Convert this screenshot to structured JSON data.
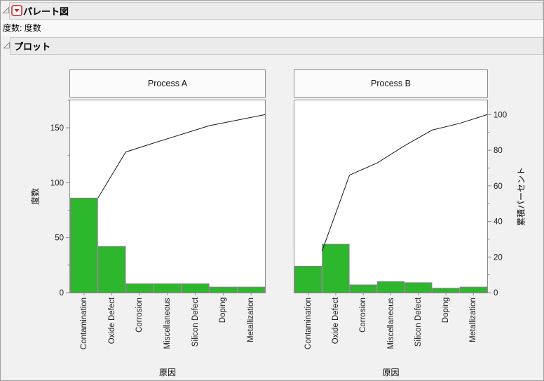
{
  "header": {
    "outline_title": "パレート図",
    "frequency_row": "度数: 度数",
    "plot_section_title": "プロット"
  },
  "icons": {
    "disclosure_open": "disclosure-triangle-open",
    "red_triangle_menu": "red-triangle-menu"
  },
  "colors": {
    "bar_fill": "#2cb72c",
    "bar_stroke": "#858585",
    "line": "#1a1a1a",
    "tick": "#8c8c8c",
    "red_triangle": "#cf1d1d",
    "band_bg": "#ebebeb",
    "frame_border": "#8c8c8c",
    "window_bg": "#f1f1f1"
  },
  "axes": {
    "freq_max": 175,
    "pct100_freq": 162,
    "left_ticks": [
      0,
      50,
      100,
      150
    ],
    "left_minor_step": 25,
    "right_ticks": [
      0,
      20,
      40,
      60,
      80,
      100
    ],
    "right_minor_step": 10,
    "left_label": "度数",
    "right_label": "累積パーセント",
    "x_label": "原因"
  },
  "chart_data": [
    {
      "type": "pareto-bar-line",
      "title": "Process A",
      "xlabel": "原因",
      "ylabel": "度数",
      "ylim": [
        0,
        175
      ],
      "categories": [
        "Contamination",
        "Oxide Defect",
        "Corrosion",
        "Miscellaneous",
        "Silicon Defect",
        "Doping",
        "Metallization"
      ],
      "bar_values": [
        86,
        42,
        8,
        8,
        8,
        5,
        5
      ],
      "total": 162,
      "cumulative_counts": [
        86,
        128,
        136,
        144,
        152,
        157,
        162
      ],
      "cumulative_percent": [
        53.1,
        79.0,
        84.0,
        88.9,
        93.8,
        96.9,
        100
      ]
    },
    {
      "type": "pareto-bar-line",
      "title": "Process B",
      "xlabel": "原因",
      "ylabel_right": "累積パーセント",
      "right_ylim": [
        0,
        100
      ],
      "categories": [
        "Contamination",
        "Oxide Defect",
        "Corrosion",
        "Miscellaneous",
        "Silicon Defect",
        "Doping",
        "Metallization"
      ],
      "bar_values": [
        24,
        44,
        7,
        10,
        9,
        4,
        5
      ],
      "total": 103,
      "cumulative_counts": [
        24,
        68,
        75,
        85,
        94,
        98,
        103
      ],
      "cumulative_percent": [
        23.3,
        66.0,
        72.8,
        82.5,
        91.3,
        95.1,
        100
      ]
    }
  ]
}
